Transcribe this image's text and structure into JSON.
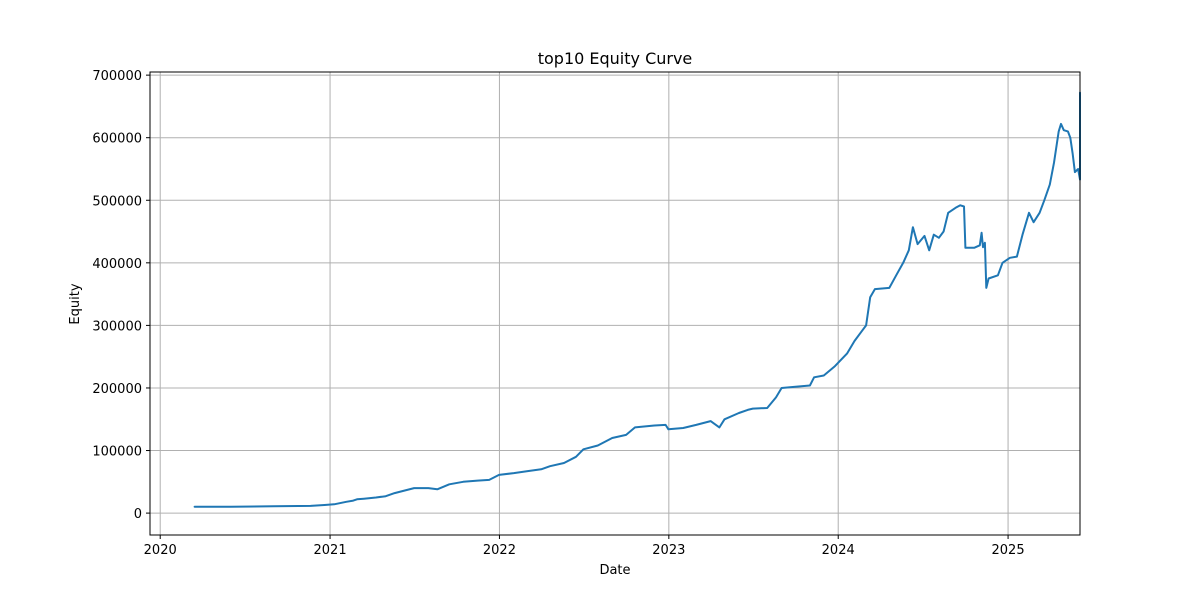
{
  "chart_data": {
    "type": "line",
    "title": "top10 Equity Curve",
    "xlabel": "Date",
    "ylabel": "Equity",
    "grid": true,
    "xlim": [
      "2019-12-10",
      "2025-06-05"
    ],
    "ylim": [
      -35000,
      705000
    ],
    "x_ticks": [
      {
        "date": "2020-01-01",
        "label": "2020"
      },
      {
        "date": "2021-01-01",
        "label": "2021"
      },
      {
        "date": "2022-01-01",
        "label": "2022"
      },
      {
        "date": "2023-01-01",
        "label": "2023"
      },
      {
        "date": "2024-01-01",
        "label": "2024"
      },
      {
        "date": "2025-01-01",
        "label": "2025"
      }
    ],
    "y_ticks": [
      {
        "value": 0,
        "label": "0"
      },
      {
        "value": 100000,
        "label": "100000"
      },
      {
        "value": 200000,
        "label": "200000"
      },
      {
        "value": 300000,
        "label": "300000"
      },
      {
        "value": 400000,
        "label": "400000"
      },
      {
        "value": 500000,
        "label": "500000"
      },
      {
        "value": 600000,
        "label": "600000"
      },
      {
        "value": 700000,
        "label": "700000"
      }
    ],
    "series": [
      {
        "color": "#1f77b4",
        "points": [
          [
            "2020-03-15",
            10000
          ],
          [
            "2020-06-01",
            10200
          ],
          [
            "2020-09-01",
            10800
          ],
          [
            "2020-11-20",
            11500
          ],
          [
            "2020-12-20",
            13000
          ],
          [
            "2021-01-10",
            14000
          ],
          [
            "2021-02-05",
            18000
          ],
          [
            "2021-02-20",
            20000
          ],
          [
            "2021-02-28",
            22000
          ],
          [
            "2021-03-15",
            23000
          ],
          [
            "2021-04-10",
            25000
          ],
          [
            "2021-05-01",
            27000
          ],
          [
            "2021-05-20",
            32000
          ],
          [
            "2021-06-10",
            36000
          ],
          [
            "2021-07-01",
            40000
          ],
          [
            "2021-08-01",
            40000
          ],
          [
            "2021-08-20",
            38000
          ],
          [
            "2021-09-15",
            46000
          ],
          [
            "2021-10-15",
            50000
          ],
          [
            "2021-11-15",
            52000
          ],
          [
            "2021-12-10",
            53000
          ],
          [
            "2021-12-31",
            61000
          ],
          [
            "2022-02-01",
            64000
          ],
          [
            "2022-03-01",
            67000
          ],
          [
            "2022-04-01",
            70000
          ],
          [
            "2022-04-20",
            75000
          ],
          [
            "2022-05-20",
            80000
          ],
          [
            "2022-06-15",
            90000
          ],
          [
            "2022-07-01",
            102000
          ],
          [
            "2022-08-01",
            108000
          ],
          [
            "2022-09-01",
            120000
          ],
          [
            "2022-10-01",
            125000
          ],
          [
            "2022-10-20",
            137000
          ],
          [
            "2022-12-01",
            140000
          ],
          [
            "2022-12-25",
            141000
          ],
          [
            "2022-12-31",
            134000
          ],
          [
            "2023-02-01",
            136000
          ],
          [
            "2023-03-01",
            141000
          ],
          [
            "2023-04-01",
            147000
          ],
          [
            "2023-04-20",
            137000
          ],
          [
            "2023-05-01",
            150000
          ],
          [
            "2023-06-01",
            160000
          ],
          [
            "2023-06-20",
            165000
          ],
          [
            "2023-07-01",
            167000
          ],
          [
            "2023-08-01",
            168000
          ],
          [
            "2023-08-20",
            185000
          ],
          [
            "2023-09-01",
            200000
          ],
          [
            "2023-10-01",
            202000
          ],
          [
            "2023-11-01",
            204000
          ],
          [
            "2023-11-10",
            217000
          ],
          [
            "2023-12-01",
            220000
          ],
          [
            "2023-12-25",
            235000
          ],
          [
            "2024-01-20",
            255000
          ],
          [
            "2024-02-05",
            275000
          ],
          [
            "2024-02-20",
            290000
          ],
          [
            "2024-03-01",
            300000
          ],
          [
            "2024-03-10",
            345000
          ],
          [
            "2024-03-20",
            358000
          ],
          [
            "2024-04-20",
            360000
          ],
          [
            "2024-05-05",
            380000
          ],
          [
            "2024-05-20",
            400000
          ],
          [
            "2024-06-01",
            420000
          ],
          [
            "2024-06-10",
            457000
          ],
          [
            "2024-06-20",
            430000
          ],
          [
            "2024-07-05",
            443000
          ],
          [
            "2024-07-15",
            420000
          ],
          [
            "2024-07-25",
            445000
          ],
          [
            "2024-08-05",
            440000
          ],
          [
            "2024-08-15",
            450000
          ],
          [
            "2024-08-25",
            480000
          ],
          [
            "2024-09-10",
            488000
          ],
          [
            "2024-09-20",
            492000
          ],
          [
            "2024-09-28",
            490000
          ],
          [
            "2024-10-01",
            424000
          ],
          [
            "2024-10-20",
            424000
          ],
          [
            "2024-11-01",
            428000
          ],
          [
            "2024-11-05",
            448000
          ],
          [
            "2024-11-08",
            425000
          ],
          [
            "2024-11-12",
            432000
          ],
          [
            "2024-11-15",
            360000
          ],
          [
            "2024-11-20",
            375000
          ],
          [
            "2024-12-10",
            380000
          ],
          [
            "2024-12-20",
            400000
          ],
          [
            "2025-01-05",
            408000
          ],
          [
            "2025-01-20",
            410000
          ],
          [
            "2025-02-01",
            445000
          ],
          [
            "2025-02-15",
            480000
          ],
          [
            "2025-02-25",
            465000
          ],
          [
            "2025-03-10",
            480000
          ],
          [
            "2025-03-20",
            500000
          ],
          [
            "2025-04-01",
            525000
          ],
          [
            "2025-04-10",
            560000
          ],
          [
            "2025-04-20",
            610000
          ],
          [
            "2025-04-25",
            622000
          ],
          [
            "2025-05-01",
            612000
          ],
          [
            "2025-05-10",
            610000
          ],
          [
            "2025-05-15",
            600000
          ],
          [
            "2025-05-20",
            575000
          ],
          [
            "2025-05-25",
            545000
          ],
          [
            "2025-06-01",
            550000
          ],
          [
            "2025-06-05",
            533000
          ],
          [
            "2025-06-15",
            540000
          ],
          [
            "2025-06-25",
            540000
          ],
          [
            "2025-07-01",
            590000
          ],
          [
            "2025-07-05",
            560000
          ],
          [
            "2025-07-10",
            605000
          ],
          [
            "2025-07-15",
            558000
          ],
          [
            "2025-07-20",
            595000
          ],
          [
            "2025-07-25",
            590000
          ],
          [
            "2025-07-30",
            635000
          ],
          [
            "2025-08-01",
            672000
          ]
        ]
      }
    ]
  }
}
